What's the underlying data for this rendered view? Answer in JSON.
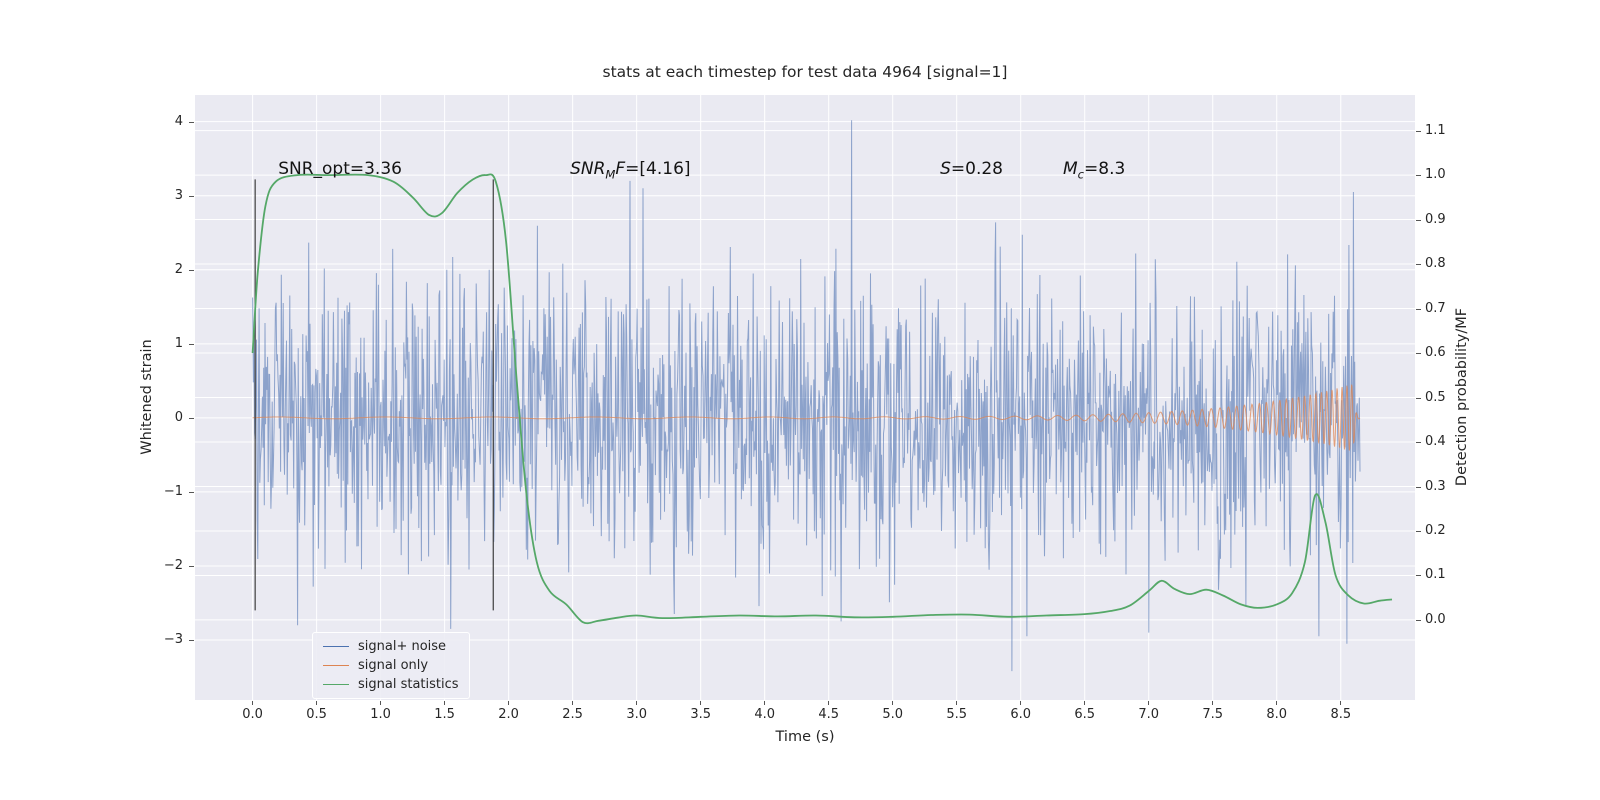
{
  "chart_data": {
    "type": "line",
    "title": "stats at each timestep for test data 4964 [signal=1]",
    "xlabel": "Time (s)",
    "ylabel_left": "Whitened strain",
    "ylabel_right": "Detection probability/MF",
    "background_color": "#eaeaf2",
    "grid": true,
    "grid_color": "#ffffff",
    "xlim": [
      -0.45,
      9.08
    ],
    "ylim_left": [
      -3.81,
      4.36
    ],
    "ylim_right": [
      -0.18,
      1.18
    ],
    "x_tick_values": [
      0,
      0.5,
      1,
      1.5,
      2,
      2.5,
      3,
      3.5,
      4,
      4.5,
      5,
      5.5,
      6,
      6.5,
      7,
      7.5,
      8,
      8.5
    ],
    "x_tick_labels": [
      "0.0",
      "0.5",
      "1.0",
      "1.5",
      "2.0",
      "2.5",
      "3.0",
      "3.5",
      "4.0",
      "4.5",
      "5.0",
      "5.5",
      "6.0",
      "6.5",
      "7.0",
      "7.5",
      "8.0",
      "8.5"
    ],
    "y_left_tick_values": [
      4,
      3,
      2,
      1,
      0,
      -1,
      -2,
      -3
    ],
    "y_left_tick_labels": [
      "4",
      "3",
      "2",
      "1",
      "0",
      "−1",
      "−2",
      "−3"
    ],
    "y_right_tick_values": [
      1.1,
      1.0,
      0.9,
      0.8,
      0.7,
      0.6,
      0.5,
      0.4,
      0.3,
      0.2,
      0.1,
      0.0
    ],
    "y_right_tick_labels": [
      "1.1",
      "1.0",
      "0.9",
      "0.8",
      "0.7",
      "0.6",
      "0.5",
      "0.4",
      "0.3",
      "0.2",
      "0.1",
      "0.0"
    ],
    "annotations": [
      {
        "x": 0.2,
        "y": 3.5,
        "segments": [
          {
            "text": "SNR_opt=3.36"
          }
        ]
      },
      {
        "x": 2.48,
        "y": 3.5,
        "segments": [
          {
            "text": "SNR",
            "style": "italic"
          },
          {
            "text": "M",
            "style": "sub"
          },
          {
            "text": "F",
            "style": "italic"
          },
          {
            "text": "=[4.16]"
          }
        ]
      },
      {
        "x": 5.37,
        "y": 3.5,
        "segments": [
          {
            "text": "S",
            "style": "italic"
          },
          {
            "text": "=0.28"
          }
        ]
      },
      {
        "x": 6.33,
        "y": 3.5,
        "segments": [
          {
            "text": "M",
            "style": "italic"
          },
          {
            "text": "c",
            "style": "sub"
          },
          {
            "text": "=8.3"
          }
        ]
      }
    ],
    "vlines": {
      "x": [
        0.02,
        1.88
      ],
      "y_min": -2.6,
      "y_max": 3.22,
      "color": "#3a3a3a",
      "width": 1.3
    },
    "legend": {
      "position": "lower left"
    },
    "series": [
      {
        "name": "signal+ noise",
        "color": "#4c72b0",
        "opacity": 0.6,
        "axis": "left",
        "type": "noise",
        "t_start": 0,
        "t_end": 8.65,
        "samples": 1700,
        "sigma": 0.92,
        "seed": 4964,
        "outliers": [
          [
            0.35,
            -2.8
          ],
          [
            1.55,
            -2.85
          ],
          [
            2.95,
            3.2
          ],
          [
            3.05,
            3.1
          ],
          [
            4.68,
            4.02
          ],
          [
            5.93,
            -3.42
          ],
          [
            6.05,
            -2.95
          ],
          [
            7.0,
            -2.9
          ],
          [
            8.33,
            -2.95
          ],
          [
            8.55,
            -3.05
          ],
          [
            8.6,
            3.05
          ]
        ]
      },
      {
        "name": "signal only",
        "color": "#dd8452",
        "opacity": 0.75,
        "axis": "left",
        "type": "chirp",
        "t_start": 0,
        "t_end": 8.65,
        "merger_time": 8.6,
        "base_amplitude": 0.012,
        "peak_amplitude": 0.45,
        "f_start": 1.2,
        "f_end": 26,
        "samples": 2800
      },
      {
        "name": "signal statistics",
        "color": "#55a868",
        "opacity": 1,
        "axis": "right",
        "type": "line",
        "width": 1.8,
        "points": [
          [
            0.0,
            0.6
          ],
          [
            0.04,
            0.78
          ],
          [
            0.1,
            0.93
          ],
          [
            0.18,
            0.985
          ],
          [
            0.35,
            1.0
          ],
          [
            0.6,
            1.0
          ],
          [
            0.9,
            1.0
          ],
          [
            1.1,
            0.985
          ],
          [
            1.25,
            0.95
          ],
          [
            1.38,
            0.91
          ],
          [
            1.48,
            0.915
          ],
          [
            1.6,
            0.96
          ],
          [
            1.72,
            0.99
          ],
          [
            1.82,
            1.0
          ],
          [
            1.9,
            0.985
          ],
          [
            1.98,
            0.85
          ],
          [
            2.06,
            0.55
          ],
          [
            2.14,
            0.28
          ],
          [
            2.22,
            0.13
          ],
          [
            2.32,
            0.065
          ],
          [
            2.45,
            0.035
          ],
          [
            2.58,
            -0.005
          ],
          [
            2.7,
            -0.002
          ],
          [
            2.85,
            0.005
          ],
          [
            3.0,
            0.01
          ],
          [
            3.2,
            0.004
          ],
          [
            3.5,
            0.007
          ],
          [
            3.8,
            0.01
          ],
          [
            4.1,
            0.008
          ],
          [
            4.4,
            0.01
          ],
          [
            4.7,
            0.006
          ],
          [
            5.0,
            0.007
          ],
          [
            5.3,
            0.011
          ],
          [
            5.6,
            0.012
          ],
          [
            5.9,
            0.007
          ],
          [
            6.2,
            0.01
          ],
          [
            6.5,
            0.013
          ],
          [
            6.7,
            0.02
          ],
          [
            6.85,
            0.032
          ],
          [
            7.0,
            0.065
          ],
          [
            7.1,
            0.088
          ],
          [
            7.2,
            0.07
          ],
          [
            7.32,
            0.058
          ],
          [
            7.45,
            0.068
          ],
          [
            7.58,
            0.055
          ],
          [
            7.72,
            0.035
          ],
          [
            7.85,
            0.027
          ],
          [
            8.0,
            0.035
          ],
          [
            8.12,
            0.06
          ],
          [
            8.22,
            0.13
          ],
          [
            8.3,
            0.28
          ],
          [
            8.38,
            0.22
          ],
          [
            8.46,
            0.1
          ],
          [
            8.56,
            0.055
          ],
          [
            8.68,
            0.037
          ],
          [
            8.8,
            0.043
          ],
          [
            8.9,
            0.046
          ]
        ]
      }
    ]
  }
}
